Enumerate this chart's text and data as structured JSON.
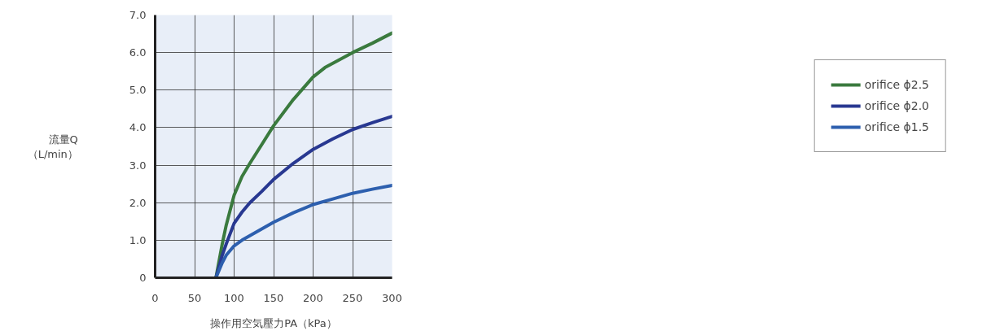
{
  "chart_data": {
    "type": "line",
    "xlabel": "操作用空気壓力PA（kPa）",
    "ylabel": "流量Q\n（L/min）",
    "xlim": [
      0,
      300
    ],
    "xticks": [
      0,
      50,
      100,
      150,
      200,
      250,
      300
    ],
    "ylim": [
      0,
      7.0
    ],
    "yticks": [
      {
        "value": 0,
        "label": "0"
      },
      {
        "value": 1,
        "label": "1.0"
      },
      {
        "value": 2,
        "label": "2.0"
      },
      {
        "value": 3,
        "label": "3.0"
      },
      {
        "value": 4,
        "label": "4.0"
      },
      {
        "value": 5,
        "label": "5.0"
      },
      {
        "value": 6,
        "label": "6.0"
      },
      {
        "value": 7,
        "label": "7.0"
      }
    ],
    "grid": true,
    "legend": "right",
    "marker": "none",
    "line_style": "solid",
    "series": [
      {
        "name": "orifice ϕ2.5",
        "color": "#3a7a3e",
        "x": [
          77,
          85,
          90,
          100,
          110,
          120,
          135,
          150,
          175,
          200,
          215,
          250,
          275,
          300
        ],
        "values": [
          0,
          0.9,
          1.4,
          2.2,
          2.7,
          3.05,
          3.55,
          4.05,
          4.75,
          5.35,
          5.6,
          6.0,
          6.25,
          6.52
        ]
      },
      {
        "name": "orifice ϕ2.0",
        "color": "#283891",
        "x": [
          77,
          85,
          90,
          100,
          110,
          120,
          135,
          150,
          175,
          200,
          225,
          250,
          275,
          300
        ],
        "values": [
          0,
          0.6,
          0.9,
          1.45,
          1.75,
          2.0,
          2.3,
          2.62,
          3.05,
          3.42,
          3.7,
          3.95,
          4.13,
          4.3
        ]
      },
      {
        "name": "orifice ϕ1.5",
        "color": "#2d5fae",
        "x": [
          77,
          85,
          90,
          100,
          110,
          120,
          150,
          175,
          200,
          225,
          250,
          275,
          300
        ],
        "values": [
          0,
          0.4,
          0.6,
          0.85,
          1.0,
          1.12,
          1.48,
          1.73,
          1.95,
          2.1,
          2.25,
          2.36,
          2.46
        ]
      }
    ]
  }
}
